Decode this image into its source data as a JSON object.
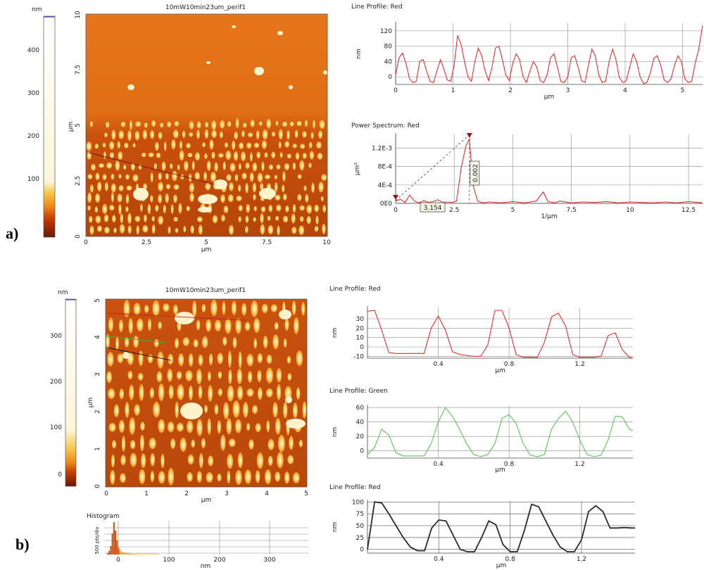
{
  "panels": {
    "a": {
      "label": "a)",
      "colorbar": {
        "unit": "nm",
        "ticks": [
          "400",
          "300",
          "200",
          "100"
        ]
      },
      "image": {
        "title": "10mW10min23um_perif1",
        "xlabel": "µm",
        "ylabel": "µm",
        "xticks": [
          "0",
          "2.5",
          "5",
          "7.5",
          "10"
        ],
        "yticks": [
          "0",
          "2.5",
          "5",
          "7.5",
          "10"
        ]
      }
    },
    "b": {
      "label": "b)",
      "colorbar": {
        "unit": "nm",
        "ticks": [
          "300",
          "200",
          "100",
          "0"
        ]
      },
      "image": {
        "title": "10mW10min23um_perif1",
        "xlabel": "µm",
        "ylabel": "µm",
        "xticks": [
          "0",
          "1",
          "2",
          "3",
          "4",
          "5"
        ],
        "yticks": [
          "0",
          "1",
          "2",
          "3",
          "4",
          "5"
        ]
      },
      "histogram": {
        "title": "Histogram",
        "ylabel": "500 pts/div",
        "xlabel": "nm",
        "xticks": [
          "0",
          "100",
          "200",
          "300"
        ]
      }
    }
  },
  "chart_data": [
    {
      "type": "line",
      "id": "a-profile",
      "title": "Line Profile: Red",
      "xlabel": "µm",
      "ylabel": "nm",
      "color": "#e03030",
      "xlim": [
        0,
        5.35
      ],
      "ylim": [
        -20,
        140
      ],
      "yticks": [
        "120",
        "80",
        "40",
        "0"
      ],
      "xticks": [
        "0",
        "1",
        "2",
        "3",
        "4",
        "5"
      ],
      "x": [
        0,
        0.06,
        0.12,
        0.18,
        0.24,
        0.3,
        0.36,
        0.42,
        0.48,
        0.54,
        0.6,
        0.66,
        0.72,
        0.78,
        0.84,
        0.9,
        0.96,
        1.02,
        1.08,
        1.14,
        1.2,
        1.26,
        1.32,
        1.38,
        1.44,
        1.5,
        1.56,
        1.62,
        1.68,
        1.74,
        1.8,
        1.86,
        1.92,
        1.98,
        2.04,
        2.1,
        2.16,
        2.22,
        2.28,
        2.34,
        2.4,
        2.46,
        2.52,
        2.58,
        2.64,
        2.7,
        2.76,
        2.82,
        2.88,
        2.94,
        3.0,
        3.06,
        3.12,
        3.18,
        3.24,
        3.3,
        3.36,
        3.42,
        3.48,
        3.54,
        3.6,
        3.66,
        3.72,
        3.78,
        3.84,
        3.9,
        3.96,
        4.02,
        4.08,
        4.14,
        4.2,
        4.26,
        4.32,
        4.38,
        4.44,
        4.5,
        4.56,
        4.62,
        4.68,
        4.74,
        4.8,
        4.86,
        4.92,
        4.98,
        5.04,
        5.1,
        5.16,
        5.22,
        5.28,
        5.35
      ],
      "values": [
        5,
        50,
        62,
        35,
        -5,
        -15,
        -12,
        40,
        45,
        15,
        -12,
        -15,
        15,
        45,
        20,
        -8,
        -12,
        30,
        108,
        85,
        40,
        0,
        -12,
        40,
        75,
        55,
        15,
        -10,
        25,
        75,
        80,
        45,
        5,
        -10,
        35,
        60,
        45,
        0,
        -15,
        15,
        40,
        25,
        -10,
        -15,
        5,
        50,
        60,
        25,
        -12,
        -15,
        0,
        50,
        55,
        25,
        -10,
        -15,
        30,
        72,
        55,
        5,
        -15,
        -12,
        40,
        72,
        45,
        -2,
        -15,
        -10,
        25,
        60,
        40,
        0,
        -18,
        -15,
        10,
        48,
        55,
        30,
        -8,
        -15,
        -5,
        30,
        55,
        40,
        -5,
        -15,
        -12,
        35,
        70,
        135
      ]
    },
    {
      "type": "line",
      "id": "a-spectrum",
      "title": "Power Spectrum: Red",
      "xlabel": "1/µm",
      "ylabel": "µm³",
      "color": "#e03030",
      "xlim": [
        0,
        13.1
      ],
      "ylim": [
        0,
        0.0015
      ],
      "yticks": [
        "1.2E-3",
        "8E-4",
        "4E-4",
        "0E0"
      ],
      "xticks": [
        "0",
        "2.5",
        "5",
        "7.5",
        "10",
        "12.5"
      ],
      "x": [
        0,
        0.2,
        0.4,
        0.6,
        0.8,
        1.0,
        1.2,
        1.4,
        1.6,
        1.8,
        2.0,
        2.2,
        2.4,
        2.6,
        2.8,
        3.0,
        3.15,
        3.3,
        3.5,
        3.7,
        4.0,
        4.5,
        5.0,
        5.5,
        6.0,
        6.3,
        6.5,
        6.8,
        7.0,
        7.5,
        8.0,
        8.5,
        9.0,
        9.5,
        10.0,
        10.5,
        11.0,
        11.5,
        12.0,
        12.5,
        13.1
      ],
      "values": [
        5e-05,
        9e-05,
        2e-05,
        0.00018,
        5e-05,
        1e-05,
        6e-05,
        2e-05,
        4e-05,
        8e-05,
        2e-05,
        3e-05,
        2e-05,
        5e-05,
        0.00078,
        0.00125,
        0.0014,
        0.0004,
        5e-05,
        1e-05,
        3e-05,
        1e-05,
        4e-05,
        1e-05,
        5e-05,
        0.00025,
        4e-05,
        1e-05,
        5e-05,
        1e-05,
        3e-05,
        2e-05,
        4e-05,
        1e-05,
        3e-05,
        2e-05,
        1e-05,
        3e-05,
        1e-05,
        4e-05,
        1e-05
      ],
      "annotations": {
        "x_marker": "3.154",
        "y_marker": "0.002"
      }
    },
    {
      "type": "line",
      "id": "b-profile-red",
      "title": "Line Profile: Red",
      "xlabel": "µm",
      "ylabel": "nm",
      "color": "#e03030",
      "xlim": [
        0,
        1.5
      ],
      "ylim": [
        -12,
        42
      ],
      "yticks": [
        "30",
        "20",
        "10",
        "0",
        "-10"
      ],
      "xticks": [
        "0.4",
        "0.8",
        "1.2"
      ],
      "x": [
        0,
        0.04,
        0.08,
        0.12,
        0.16,
        0.2,
        0.24,
        0.28,
        0.32,
        0.36,
        0.4,
        0.44,
        0.48,
        0.52,
        0.56,
        0.6,
        0.64,
        0.68,
        0.72,
        0.76,
        0.8,
        0.84,
        0.88,
        0.92,
        0.96,
        1.0,
        1.04,
        1.08,
        1.12,
        1.16,
        1.2,
        1.24,
        1.28,
        1.32,
        1.36,
        1.4,
        1.44,
        1.48,
        1.5
      ],
      "values": [
        38,
        39,
        18,
        -6,
        -7,
        -7,
        -7,
        -7,
        -7,
        20,
        33,
        18,
        -5,
        -8,
        -9,
        -10,
        -10,
        2,
        39,
        39,
        20,
        -8,
        -11,
        -11,
        -11,
        5,
        32,
        36,
        22,
        -8,
        -11,
        -11,
        -11,
        -10,
        12,
        15,
        -3,
        -11,
        -12
      ]
    },
    {
      "type": "line",
      "id": "b-profile-green",
      "title": "Line Profile: Green",
      "xlabel": "µm",
      "ylabel": "nm",
      "color": "#55c855",
      "xlim": [
        0,
        1.5
      ],
      "ylim": [
        -10,
        62
      ],
      "yticks": [
        "60",
        "40",
        "20",
        "0"
      ],
      "xticks": [
        "0.4",
        "0.8",
        "1.2"
      ],
      "x": [
        0,
        0.04,
        0.08,
        0.12,
        0.16,
        0.2,
        0.24,
        0.28,
        0.32,
        0.36,
        0.4,
        0.44,
        0.48,
        0.52,
        0.56,
        0.6,
        0.64,
        0.68,
        0.72,
        0.76,
        0.8,
        0.84,
        0.88,
        0.92,
        0.96,
        1.0,
        1.04,
        1.08,
        1.12,
        1.16,
        1.2,
        1.24,
        1.28,
        1.32,
        1.36,
        1.4,
        1.44,
        1.48,
        1.5
      ],
      "values": [
        -5,
        5,
        30,
        22,
        -2,
        -7,
        -7,
        -7,
        -7,
        10,
        40,
        60,
        48,
        30,
        10,
        -5,
        -8,
        -5,
        10,
        45,
        50,
        38,
        10,
        -6,
        -8,
        -5,
        30,
        45,
        55,
        40,
        15,
        -5,
        -8,
        -6,
        15,
        48,
        47,
        30,
        28
      ]
    },
    {
      "type": "line",
      "id": "b-profile-black",
      "title": "Line Profile: Red",
      "xlabel": "µm",
      "ylabel": "nm",
      "color": "#2a2a2a",
      "xlim": [
        0,
        1.5
      ],
      "ylim": [
        -8,
        102
      ],
      "yticks": [
        "100",
        "75",
        "50",
        "25",
        "0"
      ],
      "xticks": [
        "0.4",
        "0.8",
        "1.2"
      ],
      "x": [
        0,
        0.04,
        0.08,
        0.12,
        0.16,
        0.2,
        0.24,
        0.28,
        0.32,
        0.36,
        0.4,
        0.44,
        0.48,
        0.52,
        0.56,
        0.6,
        0.64,
        0.68,
        0.72,
        0.76,
        0.8,
        0.84,
        0.88,
        0.92,
        0.96,
        1.0,
        1.04,
        1.08,
        1.12,
        1.16,
        1.2,
        1.24,
        1.28,
        1.32,
        1.36,
        1.4,
        1.44,
        1.48,
        1.5
      ],
      "values": [
        0,
        100,
        98,
        75,
        50,
        25,
        5,
        -3,
        -3,
        45,
        62,
        60,
        30,
        0,
        -5,
        -5,
        25,
        60,
        52,
        10,
        -5,
        -5,
        40,
        95,
        90,
        60,
        30,
        5,
        -5,
        -5,
        20,
        80,
        92,
        80,
        45,
        45,
        46,
        45,
        45
      ]
    }
  ]
}
